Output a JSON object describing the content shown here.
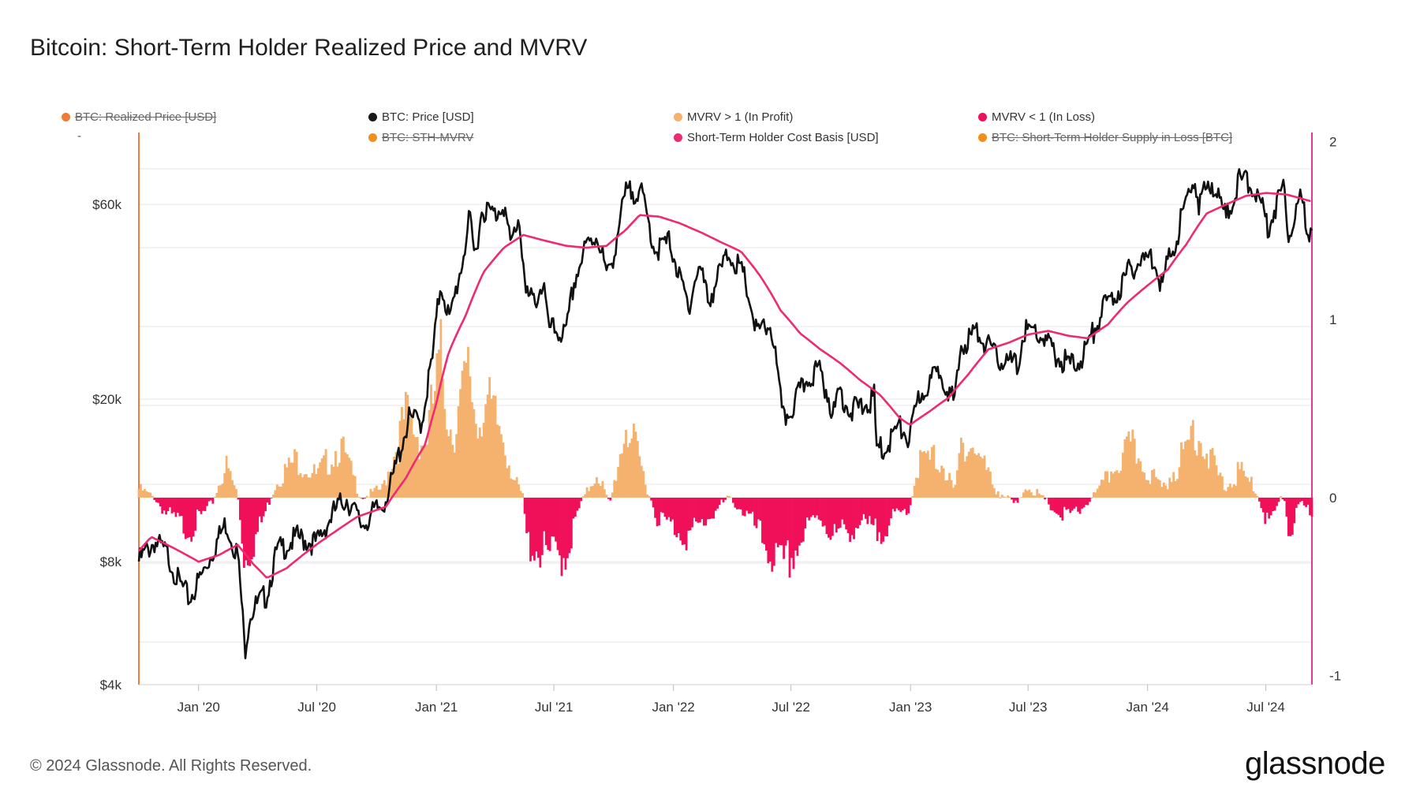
{
  "title": "Bitcoin: Short-Term Holder Realized Price and MVRV",
  "legend": [
    {
      "label": "BTC: Realized Price [USD]",
      "color": "#f07a3a",
      "hidden": true
    },
    {
      "label": "BTC: Price [USD]",
      "color": "#1a1a1a",
      "hidden": false
    },
    {
      "label": "MVRV > 1 (In Profit)",
      "color": "#f4b26e",
      "hidden": false
    },
    {
      "label": "MVRV < 1 (In Loss)",
      "color": "#f0105a",
      "hidden": false
    },
    {
      "label": "BTC: STH-MVRV",
      "color": "#f0901a",
      "hidden": true
    },
    {
      "label": "Short-Term Holder Cost Basis [USD]",
      "color": "#ee2a72",
      "hidden": false
    },
    {
      "label": "BTC: Short-Term Holder Supply in Loss [BTC]",
      "color": "#f0901a",
      "hidden": true
    }
  ],
  "legend_dash": "-",
  "footer": "© 2024 Glassnode. All Rights Reserved.",
  "logo": "glassnode",
  "colors": {
    "price": "#111111",
    "sth_cost_basis": "#ee2a72",
    "profit": "#f4b26e",
    "loss": "#f0105a",
    "left_axis": "#f07a3a",
    "right_axis": "#e0389a",
    "grid": "#e6e6e6"
  },
  "chart_data": {
    "type": "line",
    "title": "Bitcoin: Short-Term Holder Realized Price and MVRV",
    "x_range": [
      "2019-10-01",
      "2024-09-10"
    ],
    "x_ticks": [
      {
        "date": "2020-01-01",
        "label": "Jan '20"
      },
      {
        "date": "2020-07-01",
        "label": "Jul '20"
      },
      {
        "date": "2021-01-01",
        "label": "Jan '21"
      },
      {
        "date": "2021-07-01",
        "label": "Jul '21"
      },
      {
        "date": "2022-01-01",
        "label": "Jan '22"
      },
      {
        "date": "2022-07-01",
        "label": "Jul '22"
      },
      {
        "date": "2023-01-01",
        "label": "Jan '23"
      },
      {
        "date": "2023-07-01",
        "label": "Jul '23"
      },
      {
        "date": "2024-01-01",
        "label": "Jan '24"
      },
      {
        "date": "2024-07-01",
        "label": "Jul '24"
      }
    ],
    "left_axis": {
      "scale": "log",
      "ylim": [
        4000,
        90000
      ],
      "ticks": [
        {
          "value": 4000,
          "label": "$4k"
        },
        {
          "value": 8000,
          "label": "$8k"
        },
        {
          "value": 20000,
          "label": "$20k"
        },
        {
          "value": 60000,
          "label": "$60k"
        }
      ]
    },
    "right_axis": {
      "scale": "linear",
      "ylim": [
        -1.05,
        2.05
      ],
      "ticks": [
        {
          "value": -1,
          "label": "-1"
        },
        {
          "value": 0,
          "label": "0"
        },
        {
          "value": 1,
          "label": "1"
        },
        {
          "value": 2,
          "label": "2"
        }
      ]
    },
    "series": [
      {
        "name": "BTC: Price [USD]",
        "axis": "left",
        "points": [
          [
            "2019-10-01",
            8300
          ],
          [
            "2019-10-25",
            9300
          ],
          [
            "2019-11-15",
            8600
          ],
          [
            "2019-12-01",
            7400
          ],
          [
            "2019-12-18",
            6700
          ],
          [
            "2020-01-10",
            7900
          ],
          [
            "2020-02-12",
            10300
          ],
          [
            "2020-03-01",
            8600
          ],
          [
            "2020-03-12",
            5000
          ],
          [
            "2020-03-20",
            6200
          ],
          [
            "2020-04-15",
            6900
          ],
          [
            "2020-05-01",
            8800
          ],
          [
            "2020-06-01",
            9500
          ],
          [
            "2020-07-01",
            9200
          ],
          [
            "2020-07-28",
            11000
          ],
          [
            "2020-08-15",
            11900
          ],
          [
            "2020-09-08",
            10200
          ],
          [
            "2020-10-10",
            11400
          ],
          [
            "2020-10-25",
            13000
          ],
          [
            "2020-11-20",
            18500
          ],
          [
            "2020-12-10",
            18300
          ],
          [
            "2020-12-27",
            26500
          ],
          [
            "2021-01-08",
            40000
          ],
          [
            "2021-01-22",
            32000
          ],
          [
            "2021-02-10",
            45000
          ],
          [
            "2021-02-21",
            57000
          ],
          [
            "2021-03-01",
            46000
          ],
          [
            "2021-03-13",
            61000
          ],
          [
            "2021-04-02",
            58500
          ],
          [
            "2021-04-14",
            63500
          ],
          [
            "2021-04-25",
            49000
          ],
          [
            "2021-05-08",
            58000
          ],
          [
            "2021-05-19",
            37000
          ],
          [
            "2021-06-01",
            36000
          ],
          [
            "2021-06-15",
            40000
          ],
          [
            "2021-06-22",
            31000
          ],
          [
            "2021-07-20",
            29800
          ],
          [
            "2021-08-01",
            40000
          ],
          [
            "2021-08-20",
            49000
          ],
          [
            "2021-09-06",
            52500
          ],
          [
            "2021-09-21",
            41000
          ],
          [
            "2021-10-01",
            47000
          ],
          [
            "2021-10-20",
            66000
          ],
          [
            "2021-11-10",
            68000
          ],
          [
            "2021-11-26",
            54000
          ],
          [
            "2021-12-04",
            48000
          ],
          [
            "2021-12-27",
            50500
          ],
          [
            "2022-01-10",
            41000
          ],
          [
            "2022-01-24",
            35000
          ],
          [
            "2022-02-10",
            44000
          ],
          [
            "2022-02-24",
            36000
          ],
          [
            "2022-03-28",
            47500
          ],
          [
            "2022-04-20",
            41000
          ],
          [
            "2022-05-09",
            30000
          ],
          [
            "2022-05-31",
            31500
          ],
          [
            "2022-06-13",
            22000
          ],
          [
            "2022-06-18",
            18500
          ],
          [
            "2022-07-01",
            19500
          ],
          [
            "2022-07-30",
            23800
          ],
          [
            "2022-08-14",
            24400
          ],
          [
            "2022-09-06",
            18800
          ],
          [
            "2022-09-12",
            22000
          ],
          [
            "2022-10-01",
            19400
          ],
          [
            "2022-10-25",
            20100
          ],
          [
            "2022-11-06",
            21000
          ],
          [
            "2022-11-09",
            15800
          ],
          [
            "2022-11-21",
            15600
          ],
          [
            "2022-12-14",
            17800
          ],
          [
            "2022-12-31",
            16500
          ],
          [
            "2023-01-14",
            21000
          ],
          [
            "2023-02-16",
            24500
          ],
          [
            "2023-03-10",
            20000
          ],
          [
            "2023-03-20",
            28000
          ],
          [
            "2023-04-13",
            30400
          ],
          [
            "2023-05-12",
            26300
          ],
          [
            "2023-06-15",
            25000
          ],
          [
            "2023-06-25",
            30500
          ],
          [
            "2023-07-15",
            30300
          ],
          [
            "2023-08-18",
            26000
          ],
          [
            "2023-09-11",
            25000
          ],
          [
            "2023-10-01",
            27900
          ],
          [
            "2023-10-24",
            34500
          ],
          [
            "2023-11-15",
            37800
          ],
          [
            "2023-12-08",
            43800
          ],
          [
            "2024-01-10",
            46500
          ],
          [
            "2024-01-23",
            39500
          ],
          [
            "2024-02-15",
            52000
          ],
          [
            "2024-03-14",
            73000
          ],
          [
            "2024-03-20",
            62000
          ],
          [
            "2024-04-08",
            71500
          ],
          [
            "2024-05-01",
            57500
          ],
          [
            "2024-05-21",
            71000
          ],
          [
            "2024-06-07",
            71000
          ],
          [
            "2024-07-05",
            55000
          ],
          [
            "2024-07-29",
            69500
          ],
          [
            "2024-08-05",
            53000
          ],
          [
            "2024-08-24",
            64000
          ],
          [
            "2024-09-06",
            53500
          ],
          [
            "2024-09-10",
            57000
          ]
        ]
      },
      {
        "name": "Short-Term Holder Cost Basis [USD]",
        "axis": "left",
        "points": [
          [
            "2019-10-01",
            8500
          ],
          [
            "2019-10-20",
            9200
          ],
          [
            "2019-11-20",
            8700
          ],
          [
            "2020-01-01",
            8000
          ],
          [
            "2020-02-01",
            8300
          ],
          [
            "2020-03-01",
            8800
          ],
          [
            "2020-03-25",
            7900
          ],
          [
            "2020-04-15",
            7300
          ],
          [
            "2020-05-15",
            7700
          ],
          [
            "2020-06-30",
            8800
          ],
          [
            "2020-07-30",
            9500
          ],
          [
            "2020-09-01",
            10300
          ],
          [
            "2020-10-15",
            10900
          ],
          [
            "2020-11-15",
            12800
          ],
          [
            "2020-12-15",
            15500
          ],
          [
            "2021-01-01",
            19500
          ],
          [
            "2021-01-20",
            26000
          ],
          [
            "2021-02-15",
            32000
          ],
          [
            "2021-03-15",
            41000
          ],
          [
            "2021-04-15",
            47000
          ],
          [
            "2021-05-15",
            50500
          ],
          [
            "2021-06-15",
            49000
          ],
          [
            "2021-07-20",
            47500
          ],
          [
            "2021-08-20",
            47000
          ],
          [
            "2021-09-20",
            47500
          ],
          [
            "2021-10-20",
            52000
          ],
          [
            "2021-11-10",
            56500
          ],
          [
            "2021-12-10",
            56000
          ],
          [
            "2022-01-10",
            54000
          ],
          [
            "2022-02-15",
            51000
          ],
          [
            "2022-03-15",
            48500
          ],
          [
            "2022-04-15",
            46000
          ],
          [
            "2022-05-15",
            40000
          ],
          [
            "2022-06-15",
            33000
          ],
          [
            "2022-07-15",
            29000
          ],
          [
            "2022-08-15",
            26500
          ],
          [
            "2022-09-15",
            24500
          ],
          [
            "2022-10-15",
            22300
          ],
          [
            "2022-11-15",
            20500
          ],
          [
            "2022-12-15",
            18000
          ],
          [
            "2022-12-31",
            17300
          ],
          [
            "2023-01-31",
            18700
          ],
          [
            "2023-03-01",
            20200
          ],
          [
            "2023-03-31",
            23000
          ],
          [
            "2023-05-01",
            26500
          ],
          [
            "2023-06-01",
            27500
          ],
          [
            "2023-07-01",
            28800
          ],
          [
            "2023-08-01",
            29400
          ],
          [
            "2023-09-01",
            28600
          ],
          [
            "2023-10-01",
            28200
          ],
          [
            "2023-11-01",
            30500
          ],
          [
            "2023-12-01",
            34500
          ],
          [
            "2024-01-01",
            38000
          ],
          [
            "2024-02-01",
            41500
          ],
          [
            "2024-03-01",
            48000
          ],
          [
            "2024-04-01",
            57000
          ],
          [
            "2024-05-01",
            60000
          ],
          [
            "2024-06-01",
            63000
          ],
          [
            "2024-07-01",
            64000
          ],
          [
            "2024-08-01",
            63500
          ],
          [
            "2024-09-10",
            61000
          ]
        ]
      },
      {
        "name": "BTC: STH-MVRV (deviation from 1)",
        "axis": "right",
        "points": [
          [
            "2019-10-01",
            0.05
          ],
          [
            "2019-10-25",
            0.0
          ],
          [
            "2019-11-15",
            -0.1
          ],
          [
            "2019-12-18",
            -0.18
          ],
          [
            "2020-01-20",
            -0.05
          ],
          [
            "2020-02-12",
            0.18
          ],
          [
            "2020-03-01",
            0.02
          ],
          [
            "2020-03-12",
            -0.35
          ],
          [
            "2020-04-01",
            -0.2
          ],
          [
            "2020-05-01",
            0.1
          ],
          [
            "2020-06-01",
            0.22
          ],
          [
            "2020-07-01",
            0.12
          ],
          [
            "2020-08-05",
            0.3
          ],
          [
            "2020-09-08",
            0.0
          ],
          [
            "2020-10-10",
            0.05
          ],
          [
            "2020-11-15",
            0.45
          ],
          [
            "2020-12-15",
            0.3
          ],
          [
            "2021-01-08",
            0.75
          ],
          [
            "2021-01-25",
            0.35
          ],
          [
            "2021-02-21",
            0.7
          ],
          [
            "2021-03-05",
            0.4
          ],
          [
            "2021-03-15",
            0.55
          ],
          [
            "2021-04-14",
            0.35
          ],
          [
            "2021-05-01",
            0.1
          ],
          [
            "2021-05-15",
            0.0
          ],
          [
            "2021-05-20",
            -0.25
          ],
          [
            "2021-06-22",
            -0.33
          ],
          [
            "2021-07-20",
            -0.32
          ],
          [
            "2021-08-10",
            -0.05
          ],
          [
            "2021-09-06",
            0.15
          ],
          [
            "2021-09-25",
            -0.05
          ],
          [
            "2021-10-20",
            0.42
          ],
          [
            "2021-11-10",
            0.2
          ],
          [
            "2021-12-05",
            -0.1
          ],
          [
            "2022-01-24",
            -0.22
          ],
          [
            "2022-03-28",
            0.0
          ],
          [
            "2022-04-25",
            -0.1
          ],
          [
            "2022-06-18",
            -0.42
          ],
          [
            "2022-07-31",
            -0.15
          ],
          [
            "2022-08-14",
            -0.1
          ],
          [
            "2022-09-06",
            -0.22
          ],
          [
            "2022-10-15",
            -0.15
          ],
          [
            "2022-11-10",
            -0.2
          ],
          [
            "2022-12-31",
            -0.05
          ],
          [
            "2023-01-14",
            0.2
          ],
          [
            "2023-02-16",
            0.22
          ],
          [
            "2023-03-10",
            0.02
          ],
          [
            "2023-03-22",
            0.35
          ],
          [
            "2023-04-15",
            0.25
          ],
          [
            "2023-05-12",
            0.05
          ],
          [
            "2023-06-15",
            -0.05
          ],
          [
            "2023-06-28",
            0.08
          ],
          [
            "2023-08-20",
            -0.1
          ],
          [
            "2023-09-11",
            -0.1
          ],
          [
            "2023-10-20",
            0.05
          ],
          [
            "2023-11-15",
            0.2
          ],
          [
            "2023-12-08",
            0.28
          ],
          [
            "2024-01-23",
            0.05
          ],
          [
            "2024-02-28",
            0.25
          ],
          [
            "2024-03-14",
            0.42
          ],
          [
            "2024-04-15",
            0.15
          ],
          [
            "2024-05-01",
            0.05
          ],
          [
            "2024-05-21",
            0.15
          ],
          [
            "2024-06-15",
            0.05
          ],
          [
            "2024-07-05",
            -0.15
          ],
          [
            "2024-07-29",
            0.02
          ],
          [
            "2024-08-05",
            -0.2
          ],
          [
            "2024-08-24",
            -0.05
          ],
          [
            "2024-09-10",
            -0.08
          ]
        ]
      }
    ]
  }
}
